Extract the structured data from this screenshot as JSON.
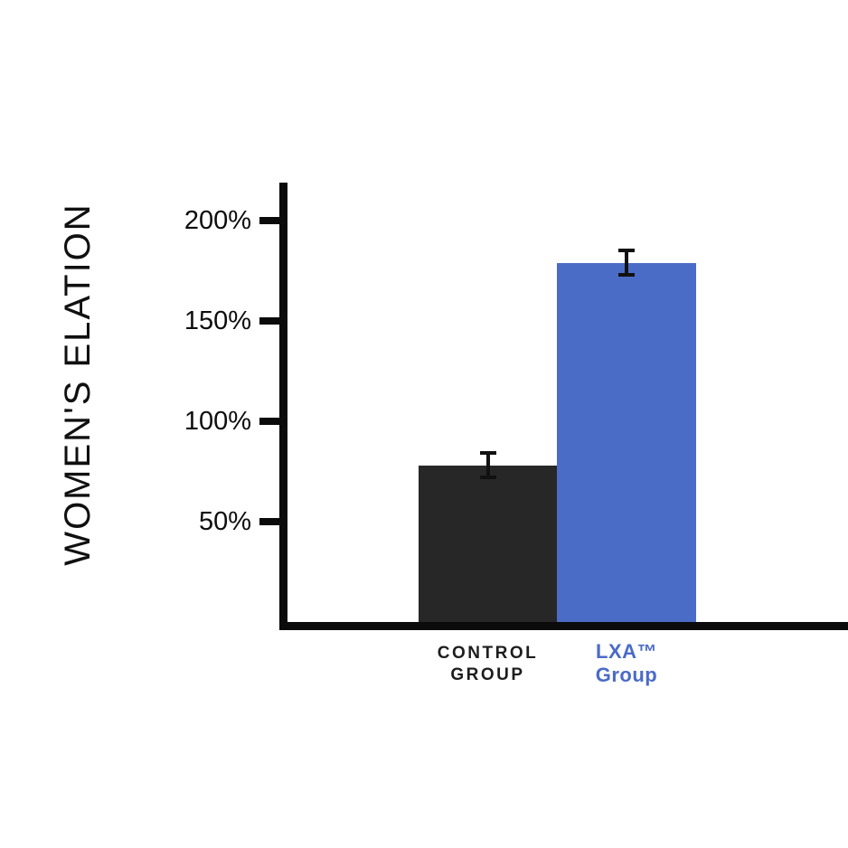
{
  "page": {
    "background": "#ffffff"
  },
  "chart_data": {
    "type": "bar",
    "title": "",
    "xlabel": "",
    "ylabel": "WOMEN'S ELATION",
    "categories": [
      "CONTROL GROUP",
      "LXA™ Group"
    ],
    "series": [
      {
        "name": "Women's elation",
        "values": [
          78,
          179
        ],
        "errors": [
          7,
          7
        ]
      }
    ],
    "yticks": [
      {
        "label": "200%",
        "value": 200
      },
      {
        "label": "150%",
        "value": 150
      },
      {
        "label": "100%",
        "value": 100
      },
      {
        "label": "50%",
        "value": 50
      }
    ],
    "ylim": [
      0,
      219
    ],
    "grid": false,
    "legend": false,
    "axis_color": "#0b0b0b",
    "error_bar_color": "#111111",
    "bar_styles": [
      {
        "slug": "control-group",
        "label_lines": [
          "CONTROL",
          "GROUP"
        ],
        "color": "#272727",
        "label_color": "#1d1d1d",
        "label_weight": "600"
      },
      {
        "slug": "lxa-group",
        "label_lines": [
          "LXA™",
          "Group"
        ],
        "color": "#4b6cc6",
        "label_color": "#4a6bc7",
        "label_weight": "700"
      }
    ]
  }
}
